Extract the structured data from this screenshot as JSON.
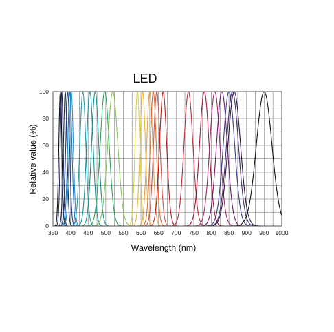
{
  "chart_data": {
    "type": "line",
    "title": "LED",
    "xlabel": "Wavelength (nm)",
    "ylabel": "Relative value (%)",
    "xlim": [
      350,
      1000
    ],
    "ylim": [
      0,
      100
    ],
    "xticks": [
      350,
      400,
      450,
      500,
      550,
      600,
      650,
      700,
      750,
      800,
      850,
      900,
      950,
      1000
    ],
    "yticks": [
      0,
      20,
      40,
      60,
      80,
      100
    ],
    "xtick_labels": [
      "350",
      "400",
      "450",
      "500",
      "550",
      "600",
      "650",
      "700",
      "750",
      "800",
      "850",
      "900",
      "950",
      "1000"
    ],
    "ytick_labels": [
      "0",
      "20",
      "40",
      "60",
      "80",
      "100"
    ],
    "grid": true,
    "series": [
      {
        "peak": 371,
        "fwhm": 10,
        "color": "#111111"
      },
      {
        "peak": 375,
        "fwhm": 10,
        "color": "#2a2a6a"
      },
      {
        "peak": 385,
        "fwhm": 12,
        "color": "#1a2a4a"
      },
      {
        "peak": 392,
        "fwhm": 13,
        "color": "#1e3c8c"
      },
      {
        "peak": 398,
        "fwhm": 14,
        "color": "#1a75b8"
      },
      {
        "peak": 402,
        "fwhm": 14,
        "color": "#2a8fc8"
      },
      {
        "peak": 435,
        "fwhm": 20,
        "color": "#2a9aa8"
      },
      {
        "peak": 455,
        "fwhm": 22,
        "color": "#1a90a0"
      },
      {
        "peak": 470,
        "fwhm": 24,
        "color": "#1f8f88"
      },
      {
        "peak": 497,
        "fwhm": 30,
        "color": "#2aa35a"
      },
      {
        "peak": 520,
        "fwhm": 34,
        "color": "#8ac55a"
      },
      {
        "peak": 590,
        "fwhm": 16,
        "color": "#d8d050"
      },
      {
        "peak": 605,
        "fwhm": 18,
        "color": "#e8b840"
      },
      {
        "peak": 625,
        "fwhm": 20,
        "color": "#e8a040"
      },
      {
        "peak": 635,
        "fwhm": 20,
        "color": "#e07030"
      },
      {
        "peak": 645,
        "fwhm": 22,
        "color": "#c85858"
      },
      {
        "peak": 663,
        "fwhm": 24,
        "color": "#b82020"
      },
      {
        "peak": 735,
        "fwhm": 30,
        "color": "#b83040"
      },
      {
        "peak": 780,
        "fwhm": 32,
        "color": "#a01838"
      },
      {
        "peak": 810,
        "fwhm": 34,
        "color": "#9a2a6a"
      },
      {
        "peak": 830,
        "fwhm": 36,
        "color": "#6a1a6a"
      },
      {
        "peak": 850,
        "fwhm": 38,
        "color": "#3a3a8a"
      },
      {
        "peak": 860,
        "fwhm": 40,
        "color": "#4a2a6a"
      },
      {
        "peak": 865,
        "fwhm": 42,
        "color": "#2a1a3a"
      },
      {
        "peak": 950,
        "fwhm": 52,
        "color": "#111111"
      }
    ]
  }
}
